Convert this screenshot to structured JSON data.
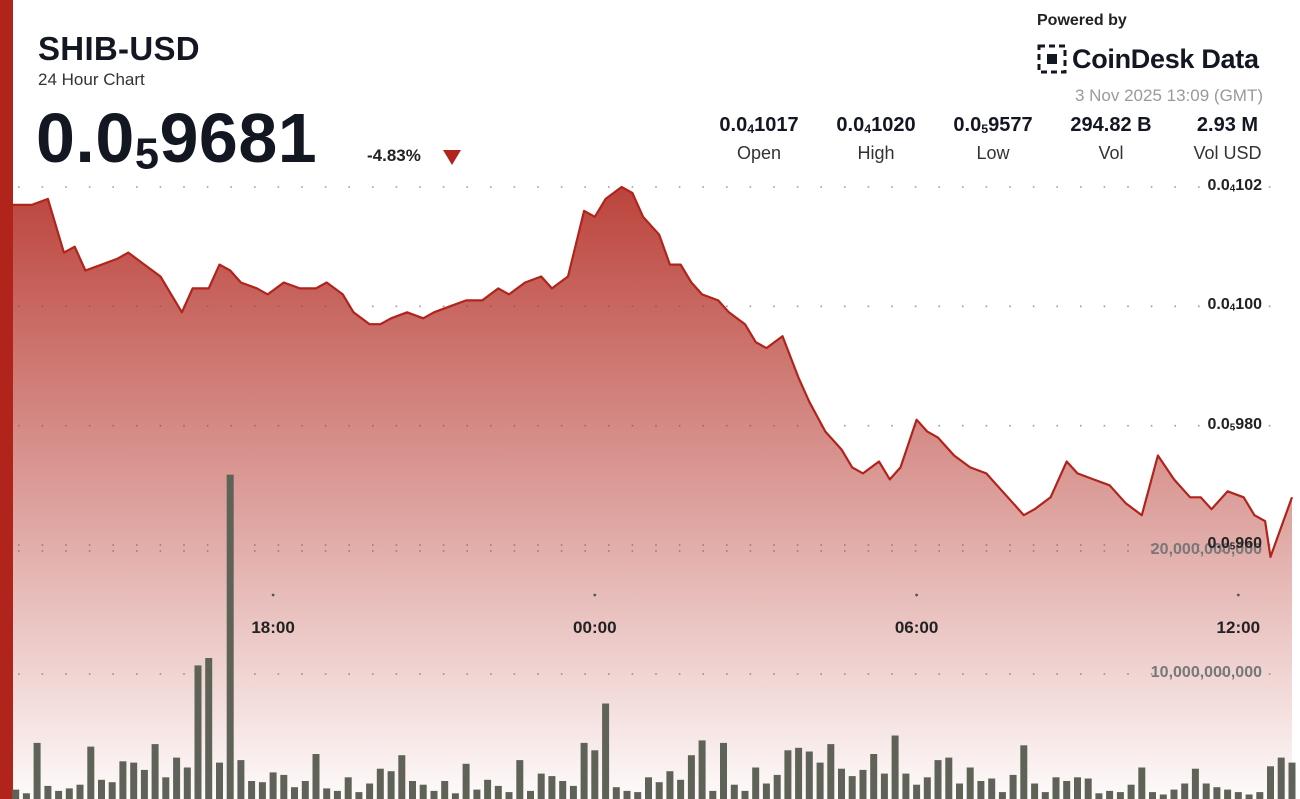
{
  "header": {
    "pair": "SHIB-USD",
    "subtitle": "24 Hour Chart",
    "price": {
      "lead": "0.0",
      "sub": "5",
      "tail": "9681"
    },
    "change": "-4.83%",
    "change_direction": "down"
  },
  "branding": {
    "powered_by": "Powered by",
    "name": "CoinDesk Data",
    "timestamp": "3 Nov 2025 13:09 (GMT)"
  },
  "stats": [
    {
      "label": "Open",
      "lead": "0.0",
      "sub": "4",
      "tail": "1017"
    },
    {
      "label": "High",
      "lead": "0.0",
      "sub": "4",
      "tail": "1020"
    },
    {
      "label": "Low",
      "lead": "0.0",
      "sub": "5",
      "tail": "9577"
    },
    {
      "label": "Vol",
      "lead": "294.82 B",
      "sub": "",
      "tail": ""
    },
    {
      "label": "Vol USD",
      "lead": "2.93 M",
      "sub": "",
      "tail": ""
    }
  ],
  "colors": {
    "accent": "#b0241c",
    "line": "#b0241c",
    "fill_top": "#b83a32",
    "volume_bar": "#5f6357",
    "down": "#b0241c"
  },
  "chart_data": {
    "type": "line",
    "price_axis": {
      "min": 9.54e-06,
      "max": 1.025e-05,
      "ticks": [
        {
          "value": 9.6e-06,
          "lead": "0.0",
          "sub": "5",
          "tail": "960"
        },
        {
          "value": 9.8e-06,
          "lead": "0.0",
          "sub": "5",
          "tail": "980"
        },
        {
          "value": 1e-05,
          "lead": "0.0",
          "sub": "4",
          "tail": "100"
        },
        {
          "value": 1.02e-05,
          "lead": "0.0",
          "sub": "4",
          "tail": "102"
        }
      ]
    },
    "volume_axis": {
      "min": 0,
      "max": 30000000000,
      "ticks": [
        {
          "value": 10000000000,
          "label": "10,000,000,000"
        },
        {
          "value": 20000000000,
          "label": "20,000,000,000"
        }
      ]
    },
    "x_axis": {
      "start_hour": 13.15,
      "end_hour": 37.15,
      "ticks": [
        {
          "hour": 18,
          "label": "18:00"
        },
        {
          "hour": 24,
          "label": "00:00"
        },
        {
          "hour": 30,
          "label": "06:00"
        },
        {
          "hour": 36,
          "label": "12:00"
        }
      ]
    },
    "grid": "dotted",
    "price_series": [
      [
        13.15,
        1.017e-05
      ],
      [
        13.5,
        1.017e-05
      ],
      [
        13.8,
        1.018e-05
      ],
      [
        14.1,
        1.009e-05
      ],
      [
        14.3,
        1.01e-05
      ],
      [
        14.5,
        1.006e-05
      ],
      [
        14.8,
        1.007e-05
      ],
      [
        15.1,
        1.008e-05
      ],
      [
        15.3,
        1.009e-05
      ],
      [
        15.6,
        1.007e-05
      ],
      [
        15.9,
        1.005e-05
      ],
      [
        16.1,
        1.002e-05
      ],
      [
        16.3,
        9.99e-06
      ],
      [
        16.5,
        1.003e-05
      ],
      [
        16.8,
        1.003e-05
      ],
      [
        17.0,
        1.007e-05
      ],
      [
        17.2,
        1.006e-05
      ],
      [
        17.4,
        1.004e-05
      ],
      [
        17.7,
        1.003e-05
      ],
      [
        17.9,
        1.002e-05
      ],
      [
        18.2,
        1.004e-05
      ],
      [
        18.5,
        1.003e-05
      ],
      [
        18.8,
        1.003e-05
      ],
      [
        19.0,
        1.004e-05
      ],
      [
        19.3,
        1.002e-05
      ],
      [
        19.5,
        9.99e-06
      ],
      [
        19.8,
        9.97e-06
      ],
      [
        20.0,
        9.97e-06
      ],
      [
        20.2,
        9.98e-06
      ],
      [
        20.5,
        9.99e-06
      ],
      [
        20.8,
        9.98e-06
      ],
      [
        21.0,
        9.99e-06
      ],
      [
        21.3,
        1e-05
      ],
      [
        21.6,
        1.001e-05
      ],
      [
        21.9,
        1.001e-05
      ],
      [
        22.2,
        1.003e-05
      ],
      [
        22.4,
        1.002e-05
      ],
      [
        22.7,
        1.004e-05
      ],
      [
        23.0,
        1.005e-05
      ],
      [
        23.2,
        1.003e-05
      ],
      [
        23.5,
        1.005e-05
      ],
      [
        23.8,
        1.016e-05
      ],
      [
        24.0,
        1.015e-05
      ],
      [
        24.2,
        1.018e-05
      ],
      [
        24.5,
        1.02e-05
      ],
      [
        24.7,
        1.019e-05
      ],
      [
        24.9,
        1.015e-05
      ],
      [
        25.2,
        1.012e-05
      ],
      [
        25.4,
        1.007e-05
      ],
      [
        25.6,
        1.007e-05
      ],
      [
        25.8,
        1.004e-05
      ],
      [
        26.0,
        1.002e-05
      ],
      [
        26.3,
        1.001e-05
      ],
      [
        26.5,
        9.99e-06
      ],
      [
        26.8,
        9.97e-06
      ],
      [
        27.0,
        9.94e-06
      ],
      [
        27.2,
        9.93e-06
      ],
      [
        27.5,
        9.95e-06
      ],
      [
        27.8,
        9.88e-06
      ],
      [
        28.0,
        9.84e-06
      ],
      [
        28.3,
        9.79e-06
      ],
      [
        28.6,
        9.76e-06
      ],
      [
        28.8,
        9.73e-06
      ],
      [
        29.0,
        9.72e-06
      ],
      [
        29.3,
        9.74e-06
      ],
      [
        29.5,
        9.71e-06
      ],
      [
        29.7,
        9.73e-06
      ],
      [
        30.0,
        9.81e-06
      ],
      [
        30.2,
        9.79e-06
      ],
      [
        30.4,
        9.78e-06
      ],
      [
        30.7,
        9.75e-06
      ],
      [
        31.0,
        9.73e-06
      ],
      [
        31.3,
        9.72e-06
      ],
      [
        31.5,
        9.7e-06
      ],
      [
        31.8,
        9.67e-06
      ],
      [
        32.0,
        9.65e-06
      ],
      [
        32.2,
        9.66e-06
      ],
      [
        32.5,
        9.68e-06
      ],
      [
        32.8,
        9.74e-06
      ],
      [
        33.0,
        9.72e-06
      ],
      [
        33.3,
        9.71e-06
      ],
      [
        33.6,
        9.7e-06
      ],
      [
        33.9,
        9.67e-06
      ],
      [
        34.2,
        9.65e-06
      ],
      [
        34.5,
        9.75e-06
      ],
      [
        34.8,
        9.71e-06
      ],
      [
        35.1,
        9.68e-06
      ],
      [
        35.3,
        9.68e-06
      ],
      [
        35.5,
        9.66e-06
      ],
      [
        35.8,
        9.69e-06
      ],
      [
        36.1,
        9.68e-06
      ],
      [
        36.3,
        9.65e-06
      ],
      [
        36.5,
        9.64e-06
      ],
      [
        36.6,
        9.58e-06
      ],
      [
        36.8,
        9.63e-06
      ],
      [
        37.0,
        9.68e-06
      ]
    ],
    "volume_series": [
      [
        13.2,
        0.6
      ],
      [
        13.4,
        0.3
      ],
      [
        13.6,
        4.4
      ],
      [
        13.8,
        0.9
      ],
      [
        14.0,
        0.5
      ],
      [
        14.2,
        0.7
      ],
      [
        14.4,
        1.0
      ],
      [
        14.6,
        4.1
      ],
      [
        14.8,
        1.4
      ],
      [
        15.0,
        1.2
      ],
      [
        15.2,
        2.9
      ],
      [
        15.4,
        2.8
      ],
      [
        15.6,
        2.2
      ],
      [
        15.8,
        4.3
      ],
      [
        16.0,
        1.6
      ],
      [
        16.2,
        3.2
      ],
      [
        16.4,
        2.4
      ],
      [
        16.6,
        10.7
      ],
      [
        16.8,
        11.3
      ],
      [
        17.0,
        2.8
      ],
      [
        17.2,
        26.2
      ],
      [
        17.4,
        3.0
      ],
      [
        17.6,
        1.3
      ],
      [
        17.8,
        1.2
      ],
      [
        18.0,
        2.0
      ],
      [
        18.2,
        1.8
      ],
      [
        18.4,
        0.8
      ],
      [
        18.6,
        1.3
      ],
      [
        18.8,
        3.5
      ],
      [
        19.0,
        0.7
      ],
      [
        19.2,
        0.5
      ],
      [
        19.4,
        1.6
      ],
      [
        19.6,
        0.4
      ],
      [
        19.8,
        1.1
      ],
      [
        20.0,
        2.3
      ],
      [
        20.2,
        2.1
      ],
      [
        20.4,
        3.4
      ],
      [
        20.6,
        1.3
      ],
      [
        20.8,
        1.0
      ],
      [
        21.0,
        0.5
      ],
      [
        21.2,
        1.3
      ],
      [
        21.4,
        0.3
      ],
      [
        21.6,
        2.7
      ],
      [
        21.8,
        0.6
      ],
      [
        22.0,
        1.4
      ],
      [
        22.2,
        0.9
      ],
      [
        22.4,
        0.4
      ],
      [
        22.6,
        3.0
      ],
      [
        22.8,
        0.5
      ],
      [
        23.0,
        1.9
      ],
      [
        23.2,
        1.7
      ],
      [
        23.4,
        1.3
      ],
      [
        23.6,
        0.9
      ],
      [
        23.8,
        4.4
      ],
      [
        24.0,
        3.8
      ],
      [
        24.2,
        7.6
      ],
      [
        24.4,
        0.8
      ],
      [
        24.6,
        0.5
      ],
      [
        24.8,
        0.4
      ],
      [
        25.0,
        1.6
      ],
      [
        25.2,
        1.2
      ],
      [
        25.4,
        2.1
      ],
      [
        25.6,
        1.4
      ],
      [
        25.8,
        3.4
      ],
      [
        26.0,
        4.6
      ],
      [
        26.2,
        0.5
      ],
      [
        26.4,
        4.4
      ],
      [
        26.6,
        1.0
      ],
      [
        26.8,
        0.5
      ],
      [
        27.0,
        2.4
      ],
      [
        27.2,
        1.1
      ],
      [
        27.4,
        1.8
      ],
      [
        27.6,
        3.8
      ],
      [
        27.8,
        4.0
      ],
      [
        28.0,
        3.7
      ],
      [
        28.2,
        2.8
      ],
      [
        28.4,
        4.3
      ],
      [
        28.6,
        2.3
      ],
      [
        28.8,
        1.7
      ],
      [
        29.0,
        2.2
      ],
      [
        29.2,
        3.5
      ],
      [
        29.4,
        1.9
      ],
      [
        29.6,
        5.0
      ],
      [
        29.8,
        1.9
      ],
      [
        30.0,
        1.0
      ],
      [
        30.2,
        1.6
      ],
      [
        30.4,
        3.0
      ],
      [
        30.6,
        3.2
      ],
      [
        30.8,
        1.1
      ],
      [
        31.0,
        2.4
      ],
      [
        31.2,
        1.3
      ],
      [
        31.4,
        1.5
      ],
      [
        31.6,
        0.4
      ],
      [
        31.8,
        1.8
      ],
      [
        32.0,
        4.2
      ],
      [
        32.2,
        1.1
      ],
      [
        32.4,
        0.4
      ],
      [
        32.6,
        1.6
      ],
      [
        32.8,
        1.3
      ],
      [
        33.0,
        1.6
      ],
      [
        33.2,
        1.5
      ],
      [
        33.4,
        0.3
      ],
      [
        33.6,
        0.5
      ],
      [
        33.8,
        0.4
      ],
      [
        34.0,
        1.0
      ],
      [
        34.2,
        2.4
      ],
      [
        34.4,
        0.4
      ],
      [
        34.6,
        0.2
      ],
      [
        34.8,
        0.6
      ],
      [
        35.0,
        1.1
      ],
      [
        35.2,
        2.3
      ],
      [
        35.4,
        1.1
      ],
      [
        35.6,
        0.8
      ],
      [
        35.8,
        0.6
      ],
      [
        36.0,
        0.4
      ],
      [
        36.2,
        0.2
      ],
      [
        36.4,
        0.4
      ],
      [
        36.6,
        2.5
      ],
      [
        36.8,
        3.2
      ],
      [
        37.0,
        2.8
      ]
    ],
    "volume_unit_billion": 1000000000
  }
}
